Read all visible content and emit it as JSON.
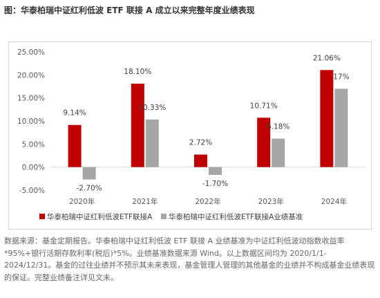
{
  "figure": {
    "title": "图：华泰柏瑞中证红利低波 ETF 联接 A 成立以来完整年度业绩表现",
    "footnote": "数据来源：基金定期报告。华泰柏瑞中证红利低波 ETF 联接 A 业绩基准为中证红利低波动指数收益率*95%+银行活期存款利率(税后)*5%。业绩基准数据来源 Wind。以上数据区间均为 2020/1/1-2024/12/31。基金的过往业绩并不预示其未来表现，基金管理人管理的其他基金的业绩并不构成基金业绩表现的保证。完整业绩备注详见文末。"
  },
  "chart_data": {
    "type": "bar",
    "categories": [
      "2020年",
      "2021年",
      "2022年",
      "2023年",
      "2024年"
    ],
    "series": [
      {
        "name": "华泰柏瑞中证红利低波ETF联接A",
        "color": "#c00000",
        "values": [
          9.14,
          18.1,
          2.72,
          10.71,
          21.06
        ],
        "labels": [
          "9.14%",
          "18.10%",
          "2.72%",
          "10.71%",
          "21.06%"
        ]
      },
      {
        "name": "华泰柏瑞中证红利低波ETF联接A业绩基准",
        "color": "#a6a6a6",
        "values": [
          -2.7,
          10.33,
          -1.7,
          6.18,
          17.0
        ],
        "labels": [
          "-2.70%",
          "10.33%",
          "-1.70%",
          "6.18%",
          "17%"
        ]
      }
    ],
    "yticks": [
      "25.00%",
      "20.00%",
      "15.00%",
      "10.00%",
      "5.00%",
      "0.00%",
      "-5.00%"
    ],
    "ytick_values": [
      25,
      20,
      15,
      10,
      5,
      0,
      -5
    ],
    "ylim": [
      -5,
      25
    ],
    "grid": false,
    "legend": "bottom"
  }
}
